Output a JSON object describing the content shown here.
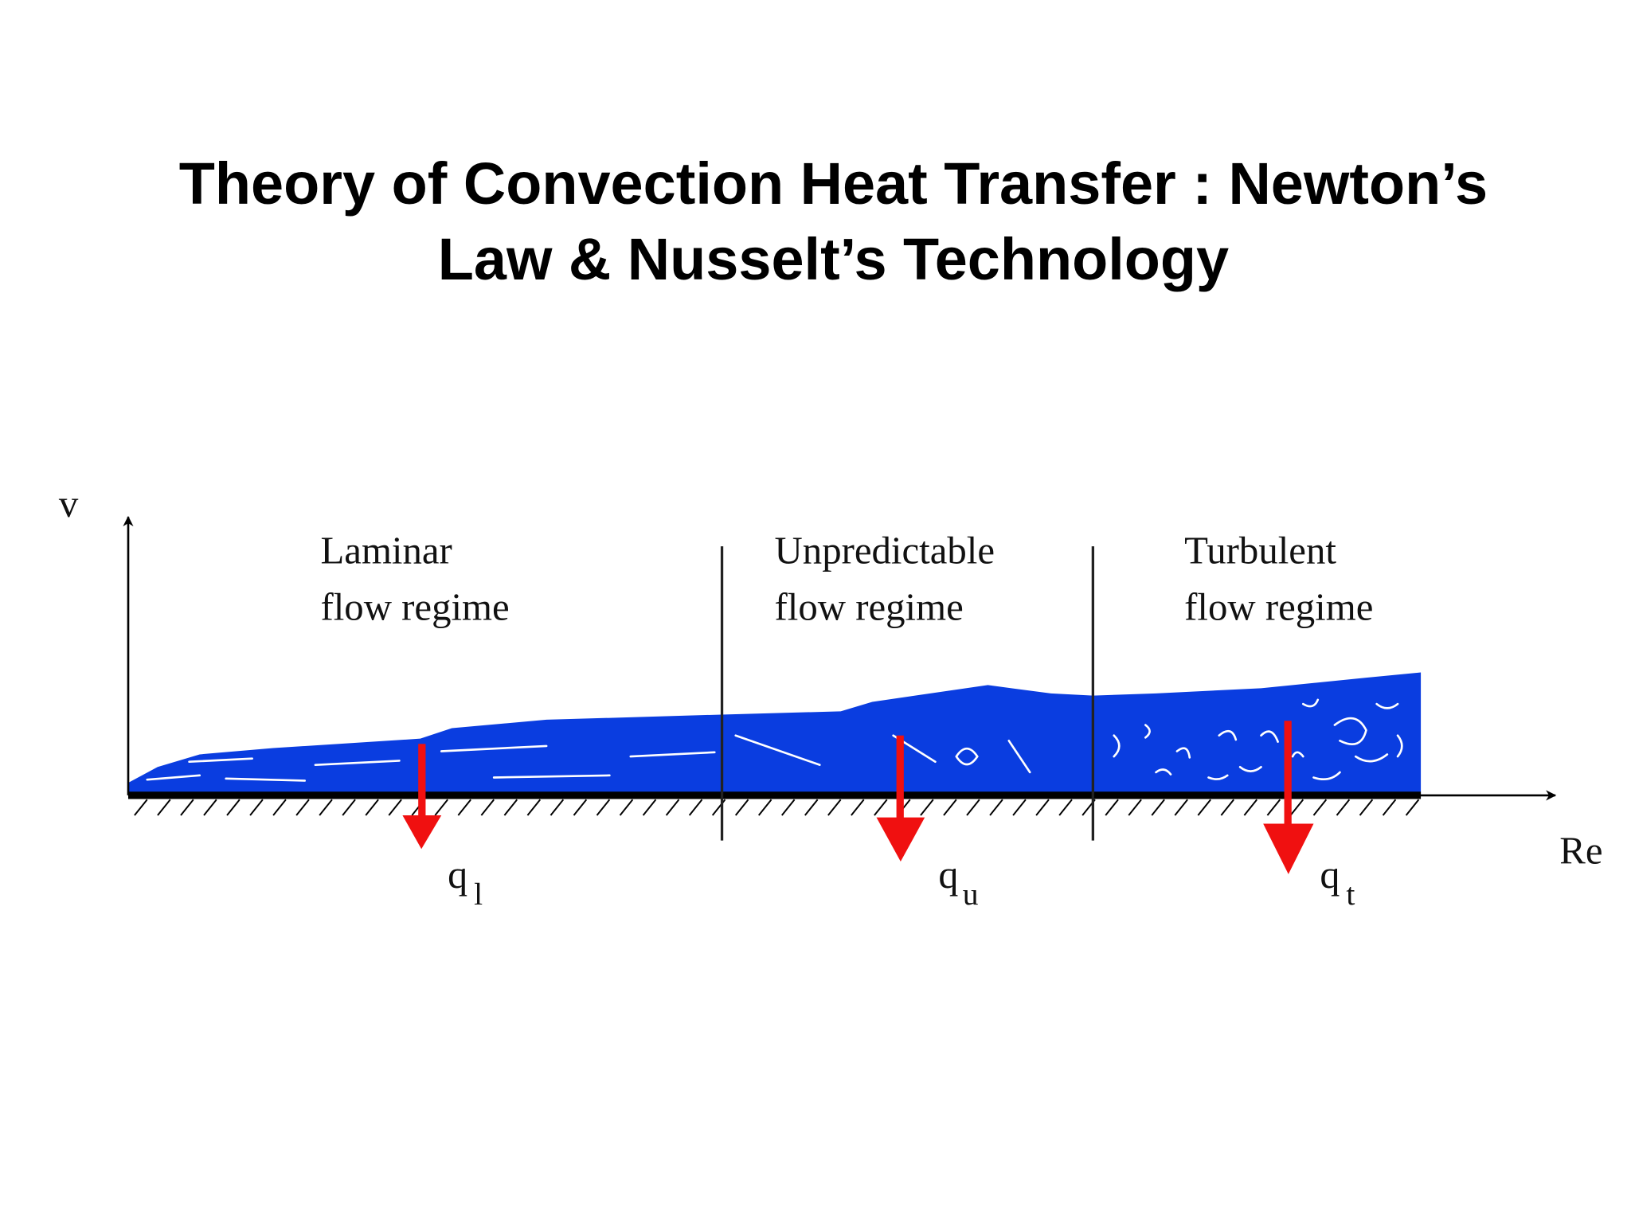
{
  "header": {
    "title_lines": [
      "Theory of Convection Heat Transfer : Newton’s",
      "Law & Nusselt’s Technology"
    ]
  },
  "diagram": {
    "y_axis_label": "v",
    "x_axis_label": "Re",
    "regimes": [
      {
        "lines": [
          "Laminar",
          "flow regime"
        ],
        "flux": {
          "symbol": "q",
          "subscript": "l"
        }
      },
      {
        "lines": [
          "Unpredictable",
          "flow regime"
        ],
        "flux": {
          "symbol": "q",
          "subscript": "u"
        }
      },
      {
        "lines": [
          "Turbulent",
          "flow regime"
        ],
        "flux": {
          "symbol": "q",
          "subscript": "t"
        }
      }
    ]
  }
}
